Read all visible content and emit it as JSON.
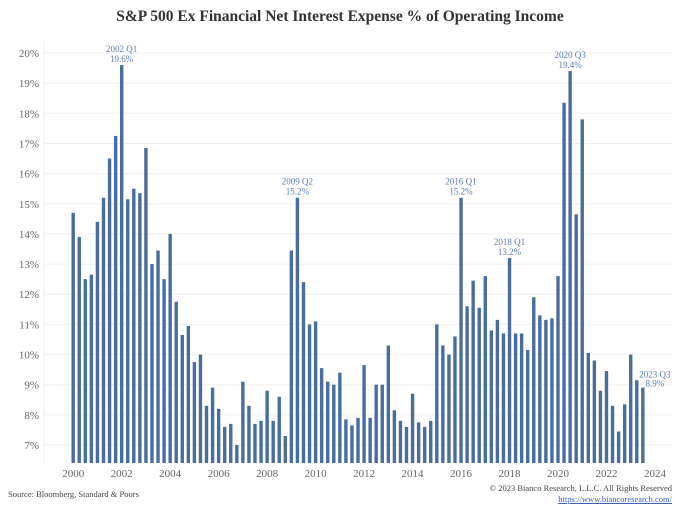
{
  "chart_data": {
    "type": "bar",
    "title": "S&P 500 Ex Financial Net Interest Expense % of Operating Income",
    "xlabel": "",
    "ylabel": "",
    "ylim": [
      6.4,
      20.5
    ],
    "grid": true,
    "yticks": [
      "7%",
      "8%",
      "9%",
      "10%",
      "11%",
      "12%",
      "13%",
      "14%",
      "15%",
      "16%",
      "17%",
      "18%",
      "19%",
      "20%"
    ],
    "ytick_values": [
      7,
      8,
      9,
      10,
      11,
      12,
      13,
      14,
      15,
      16,
      17,
      18,
      19,
      20
    ],
    "xticks": [
      "2000",
      "2002",
      "2004",
      "2006",
      "2008",
      "2010",
      "2012",
      "2014",
      "2016",
      "2018",
      "2020",
      "2022",
      "2024"
    ],
    "bar_color": "#4a6e9c",
    "annotation_color": "#5b7db3",
    "start_quarter": "2000 Q1",
    "end_quarter": "2023 Q3",
    "series": [
      {
        "name": "Net Interest Expense % of Operating Income",
        "values": [
          14.7,
          13.9,
          12.5,
          12.65,
          14.4,
          15.2,
          16.5,
          17.25,
          19.6,
          15.15,
          15.5,
          15.35,
          16.85,
          13.0,
          13.45,
          12.5,
          14.0,
          11.75,
          10.65,
          10.95,
          9.75,
          10.0,
          8.3,
          8.9,
          8.2,
          7.6,
          7.7,
          7.0,
          9.1,
          8.3,
          7.7,
          7.8,
          8.8,
          7.8,
          8.6,
          7.3,
          13.45,
          15.2,
          12.4,
          11.0,
          11.1,
          9.55,
          9.1,
          9.0,
          9.4,
          7.85,
          7.65,
          7.9,
          9.65,
          7.9,
          9.0,
          9.0,
          10.3,
          8.15,
          7.8,
          7.6,
          8.7,
          7.75,
          7.6,
          7.8,
          11.0,
          10.3,
          10.0,
          10.6,
          15.2,
          11.6,
          12.45,
          11.55,
          12.6,
          10.8,
          11.15,
          10.7,
          13.2,
          10.7,
          10.7,
          10.15,
          11.9,
          11.3,
          11.15,
          11.2,
          12.6,
          18.35,
          19.4,
          14.65,
          17.8,
          10.05,
          9.8,
          8.8,
          9.45,
          8.3,
          7.45,
          8.35,
          10.0,
          9.15,
          8.9
        ]
      }
    ],
    "annotations": [
      {
        "index": 8,
        "label": "2002 Q1",
        "value_label": "19.6%"
      },
      {
        "index": 37,
        "label": "2009 Q2",
        "value_label": "15.2%"
      },
      {
        "index": 64,
        "label": "2016 Q1",
        "value_label": "15.2%"
      },
      {
        "index": 72,
        "label": "2018 Q1",
        "value_label": "13.2%"
      },
      {
        "index": 82,
        "label": "2020 Q3",
        "value_label": "19.4%"
      },
      {
        "index": 94,
        "label": "2023 Q3",
        "value_label": "8.9%",
        "position": "right"
      }
    ]
  },
  "footer": {
    "source": "Source: Bloomberg, Standard & Poors",
    "copyright": "© 2023 Bianco Research, L.L.C. All Rights Reserved",
    "url": "https://www.biancoresearch.com/"
  }
}
